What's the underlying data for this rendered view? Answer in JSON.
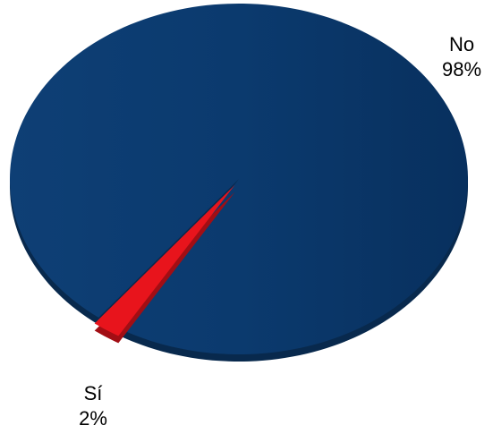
{
  "chart_data": {
    "type": "pie",
    "title": "",
    "slices": [
      {
        "name": "No",
        "value": 98,
        "label": "98%",
        "color": "#0B3A6E"
      },
      {
        "name": "Sí",
        "value": 2,
        "label": "2%",
        "color": "#E8141C"
      }
    ],
    "style": "3d-exploded"
  },
  "labels": {
    "no_name": "No",
    "no_pct": "98%",
    "si_name": "Sí",
    "si_pct": "2%"
  }
}
